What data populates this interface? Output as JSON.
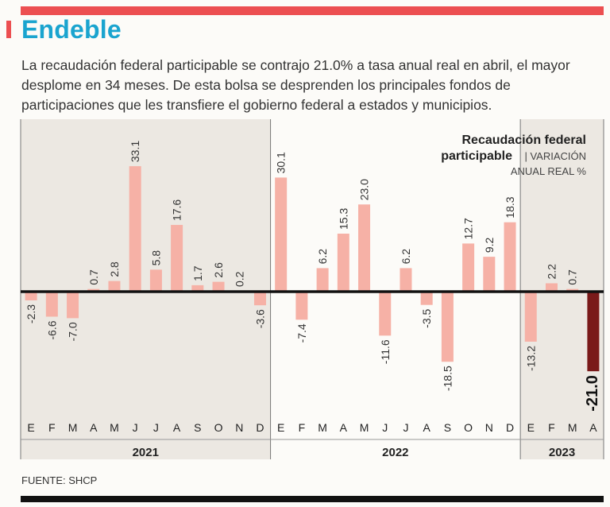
{
  "header": {
    "title": "Endeble",
    "intro": "La recaudación federal participable se contrajo 21.0% a tasa anual real en abril, el mayor desplome en 34 meses. De esta bolsa se desprenden los principales fondos de participaciones que les transfiere el gobierno federal a estados y municipios."
  },
  "colors": {
    "accent": "#ec4f51",
    "title": "#1aa4cf",
    "bar": "#f6b1a6",
    "highlight": "#7a1a1a",
    "shade": "#ece8e2"
  },
  "chart_data": {
    "type": "bar",
    "title": "Recaudación federal participable",
    "subtitle_line1": "| VARIACIÓN",
    "subtitle_line2": "ANUAL REAL %",
    "ylabel": "Variación anual real %",
    "ylim": [
      -21,
      33.1
    ],
    "years": [
      {
        "label": "2021",
        "months": 12
      },
      {
        "label": "2022",
        "months": 12
      },
      {
        "label": "2023",
        "months": 4
      }
    ],
    "categories": [
      "E",
      "F",
      "M",
      "A",
      "M",
      "J",
      "J",
      "A",
      "S",
      "O",
      "N",
      "D",
      "E",
      "F",
      "M",
      "A",
      "M",
      "J",
      "J",
      "A",
      "S",
      "O",
      "N",
      "D",
      "E",
      "F",
      "M",
      "A"
    ],
    "values": [
      -2.3,
      -6.6,
      -7.0,
      0.7,
      2.8,
      33.1,
      5.8,
      17.6,
      1.7,
      2.6,
      0.2,
      -3.6,
      30.1,
      -7.4,
      6.2,
      15.3,
      23.0,
      -11.6,
      6.2,
      -3.5,
      -18.5,
      12.7,
      9.2,
      18.3,
      -13.2,
      2.2,
      0.7,
      -21.0
    ],
    "labels": [
      "-2.3",
      "-6.6",
      "-7.0",
      "0.7",
      "2.8",
      "33.1",
      "5.8",
      "17.6",
      "1.7",
      "2.6",
      "0.2",
      "-3.6",
      "30.1",
      "-7.4",
      "6.2",
      "15.3",
      "23.0",
      "-11.6",
      "6.2",
      "-3.5",
      "-18.5",
      "12.7",
      "9.2",
      "18.3",
      "-13.2",
      "2.2",
      "0.7",
      "-21.0"
    ],
    "highlight_index": 27
  },
  "footer": {
    "source": "FUENTE: SHCP"
  }
}
